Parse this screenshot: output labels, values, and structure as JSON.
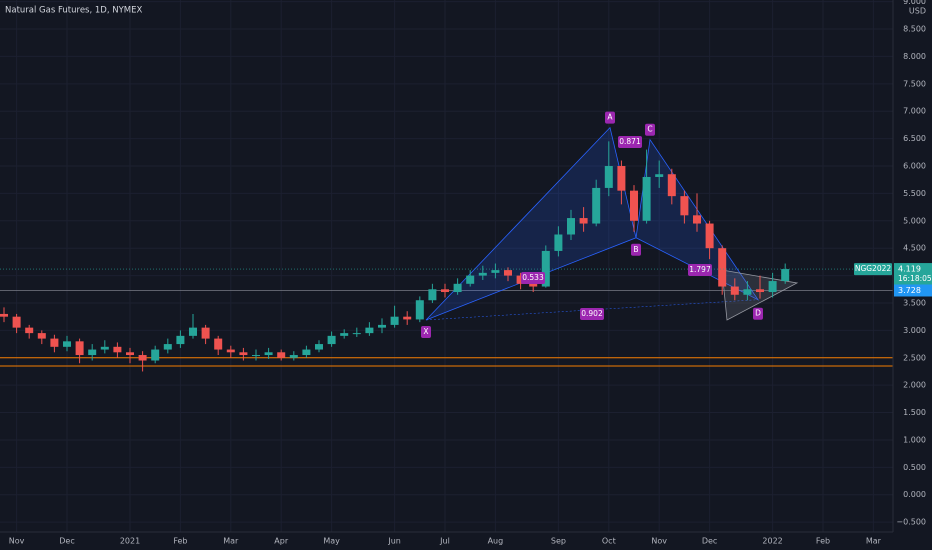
{
  "chart_data": {
    "type": "candlestick",
    "title": "Natural Gas Futures, 1D, NYMEX",
    "currency": "USD",
    "categories": [
      null,
      "Nov",
      null,
      null,
      null,
      "Dec",
      null,
      null,
      null,
      null,
      "2021",
      null,
      null,
      null,
      "Feb",
      null,
      null,
      null,
      "Mar",
      null,
      null,
      null,
      "Apr",
      null,
      null,
      null,
      "May",
      null,
      null,
      null,
      null,
      "Jun",
      null,
      null,
      null,
      "Jul",
      null,
      null,
      null,
      "Aug",
      null,
      null,
      null,
      null,
      "Sep",
      null,
      null,
      null,
      "Oct",
      null,
      null,
      null,
      "Nov",
      null,
      null,
      null,
      "Dec",
      null,
      null,
      null,
      null,
      "2022",
      null,
      null,
      null,
      "Feb",
      null,
      null,
      null,
      "Mar"
    ],
    "open": [
      3.3,
      3.25,
      3.05,
      2.95,
      2.85,
      2.7,
      2.8,
      2.55,
      2.65,
      2.7,
      2.6,
      2.55,
      2.45,
      2.65,
      2.75,
      2.9,
      3.05,
      2.85,
      2.65,
      2.6,
      2.55,
      2.55,
      2.6,
      2.5,
      2.55,
      2.65,
      2.75,
      2.9,
      2.95,
      2.95,
      3.05,
      3.1,
      3.25,
      3.2,
      3.55,
      3.75,
      3.7,
      3.85,
      4.0,
      4.05,
      4.1,
      4.0,
      3.85,
      3.8,
      4.45,
      4.75,
      5.05,
      4.95,
      5.6,
      6.0,
      5.55,
      5.0,
      5.8,
      5.85,
      5.45,
      5.1,
      4.95,
      4.5,
      3.8,
      3.65,
      3.75,
      3.7,
      3.9,
      null,
      null,
      null,
      null,
      null,
      null,
      null
    ],
    "high": [
      3.42,
      3.3,
      3.1,
      3.0,
      2.92,
      2.9,
      2.85,
      2.75,
      2.82,
      2.78,
      2.68,
      2.62,
      2.72,
      2.85,
      3.0,
      3.3,
      3.1,
      2.9,
      2.72,
      2.68,
      2.65,
      2.68,
      2.65,
      2.62,
      2.72,
      2.82,
      2.98,
      3.02,
      3.05,
      3.15,
      3.22,
      3.45,
      3.35,
      3.62,
      3.85,
      3.85,
      3.95,
      4.1,
      4.18,
      4.22,
      4.15,
      4.05,
      3.92,
      4.55,
      4.9,
      5.2,
      5.25,
      5.75,
      6.45,
      6.1,
      5.65,
      6.3,
      6.1,
      5.95,
      5.55,
      5.5,
      5.0,
      4.55,
      3.95,
      3.9,
      4.0,
      4.05,
      4.22,
      null,
      null,
      null,
      null,
      null,
      null,
      null
    ],
    "low": [
      3.15,
      2.95,
      2.85,
      2.75,
      2.6,
      2.62,
      2.4,
      2.45,
      2.58,
      2.5,
      2.4,
      2.25,
      2.4,
      2.58,
      2.68,
      2.85,
      2.75,
      2.55,
      2.5,
      2.45,
      2.45,
      2.48,
      2.45,
      2.45,
      2.5,
      2.6,
      2.7,
      2.85,
      2.88,
      2.9,
      2.95,
      3.05,
      3.1,
      3.15,
      3.5,
      3.6,
      3.65,
      3.8,
      3.92,
      3.95,
      3.9,
      3.75,
      3.7,
      3.78,
      4.35,
      4.65,
      4.8,
      4.9,
      5.45,
      5.3,
      4.8,
      4.95,
      5.6,
      5.3,
      4.95,
      4.8,
      4.3,
      3.65,
      3.55,
      3.55,
      3.58,
      3.6,
      3.85,
      null,
      null,
      null,
      null,
      null,
      null,
      null
    ],
    "close": [
      3.25,
      3.05,
      2.95,
      2.85,
      2.7,
      2.8,
      2.55,
      2.65,
      2.7,
      2.6,
      2.55,
      2.45,
      2.65,
      2.75,
      2.9,
      3.05,
      2.85,
      2.65,
      2.6,
      2.55,
      2.55,
      2.6,
      2.5,
      2.55,
      2.65,
      2.75,
      2.9,
      2.95,
      2.95,
      3.05,
      3.1,
      3.25,
      3.2,
      3.55,
      3.75,
      3.7,
      3.85,
      4.0,
      4.05,
      4.1,
      4.0,
      3.85,
      3.8,
      4.45,
      4.75,
      5.05,
      4.95,
      5.6,
      6.0,
      5.55,
      5.0,
      5.8,
      5.85,
      5.45,
      5.1,
      4.95,
      4.5,
      3.8,
      3.65,
      3.75,
      3.7,
      3.9,
      4.119,
      null,
      null,
      null,
      null,
      null,
      null,
      null
    ],
    "up_color": "#26a69a",
    "down_color": "#ef5350",
    "ylim": [
      -0.68,
      9.03
    ],
    "yticks": [
      {
        "value": -0.5,
        "label": "−0.500"
      },
      {
        "value": 0,
        "label": "0.000"
      },
      {
        "value": 0.5,
        "label": "0.500"
      },
      {
        "value": 1,
        "label": "1.000"
      },
      {
        "value": 1.5,
        "label": "1.500"
      },
      {
        "value": 2,
        "label": "2.000"
      },
      {
        "value": 2.5,
        "label": "2.500"
      },
      {
        "value": 3,
        "label": "3.000"
      },
      {
        "value": 3.5,
        "label": "3.500"
      },
      {
        "value": 4,
        "label": "4.000"
      },
      {
        "value": 4.5,
        "label": "4.500"
      },
      {
        "value": 5,
        "label": "5.000"
      },
      {
        "value": 5.5,
        "label": "5.500"
      },
      {
        "value": 6,
        "label": "6.000"
      },
      {
        "value": 6.5,
        "label": "6.500"
      },
      {
        "value": 7,
        "label": "7.000"
      },
      {
        "value": 7.5,
        "label": "7.500"
      },
      {
        "value": 8,
        "label": "8.000"
      },
      {
        "value": 8.5,
        "label": "8.500"
      },
      {
        "value": 9,
        "label": "9.000"
      }
    ],
    "grid": true,
    "last_price": {
      "symbol": "NGG2022",
      "value": 4.119,
      "countdown": "16:18:05"
    },
    "level_line": {
      "value": 3.728
    },
    "support_lines": [
      2.5,
      2.35
    ],
    "pattern_points": [
      {
        "label": "X",
        "value": 3.19
      },
      {
        "label": "A",
        "value": 6.7
      },
      {
        "label": "B",
        "value": 4.69
      },
      {
        "label": "C",
        "value": 6.48
      },
      {
        "label": "D",
        "value": 3.56
      }
    ],
    "ratios": [
      0.533,
      0.871,
      1.797,
      0.902
    ]
  }
}
